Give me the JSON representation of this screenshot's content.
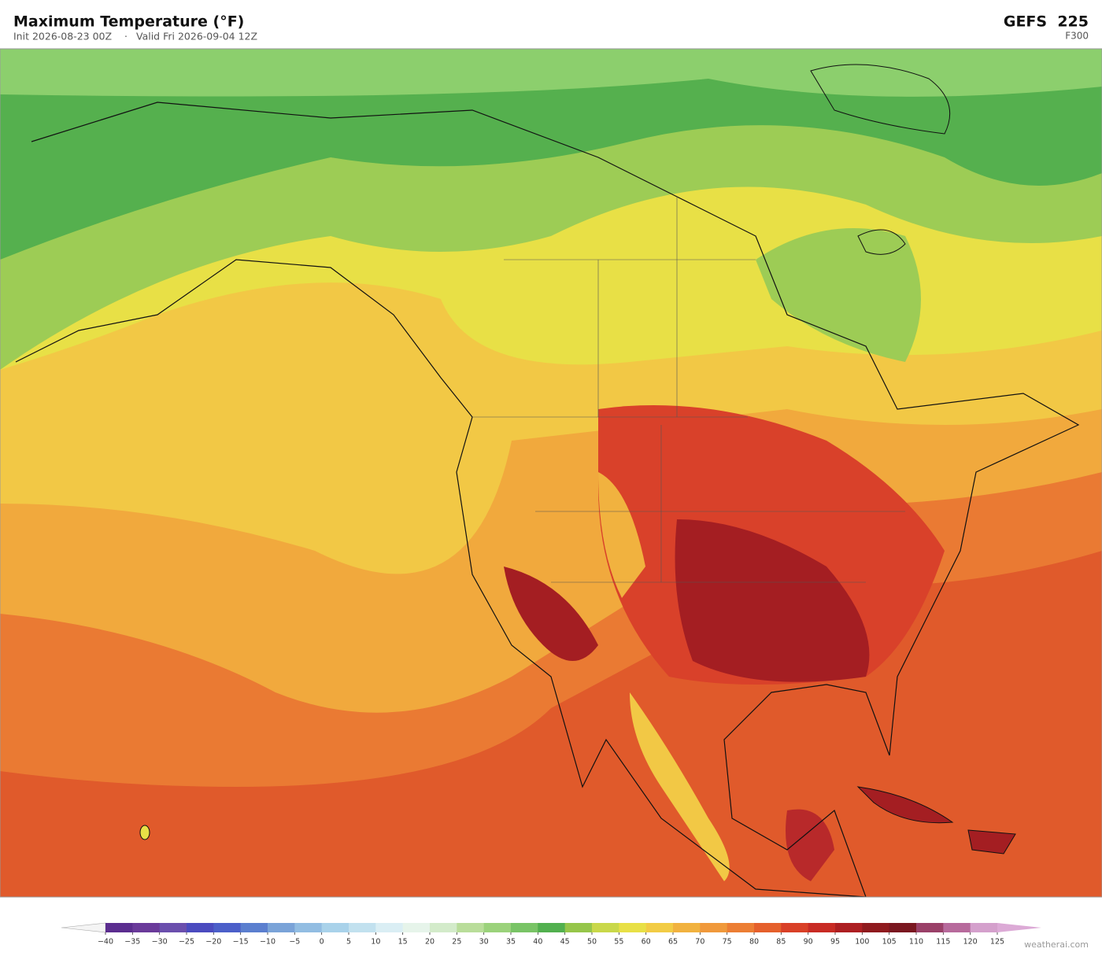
{
  "header": {
    "title": "Maximum Temperature  (°F)",
    "subtitle_init": "Init 2026-08-23 00Z",
    "separator": "·",
    "subtitle_valid": "Valid Fri 2026-09-04 12Z",
    "model": "GEFS  225",
    "forecast_hour": "F300"
  },
  "colorbar": {
    "ticks": [
      {
        "value": -40,
        "label": "−40"
      },
      {
        "value": -35,
        "label": "−35"
      },
      {
        "value": -30,
        "label": "−30"
      },
      {
        "value": -25,
        "label": "−25"
      },
      {
        "value": -20,
        "label": "−20"
      },
      {
        "value": -15,
        "label": "−15"
      },
      {
        "value": -10,
        "label": "−10"
      },
      {
        "value": -5,
        "label": "−5"
      },
      0,
      5,
      10,
      15,
      20,
      25,
      30,
      35,
      40,
      45,
      50,
      55,
      60,
      65,
      70,
      75,
      80,
      85,
      90,
      95,
      100,
      105,
      110,
      115,
      120,
      125
    ],
    "colors": [
      "#5b2d8f",
      "#6a3a9a",
      "#6b4fad",
      "#4b4bbf",
      "#4c5fc9",
      "#5b7fcf",
      "#7aa3d8",
      "#92bde2",
      "#a9d2ea",
      "#c2e1ef",
      "#daeef4",
      "#e6f4ea",
      "#d3ebca",
      "#b9dd9a",
      "#9bd27b",
      "#79c466",
      "#52b04f",
      "#96c64a",
      "#c9d84a",
      "#e8e046",
      "#f2cc45",
      "#f1b23f",
      "#f0993b",
      "#ec7e34",
      "#e5602c",
      "#d94027",
      "#c82b24",
      "#ad1f22",
      "#8f1a1e",
      "#7a1720",
      "#9a4068",
      "#b76a9c",
      "#d4a0cc"
    ],
    "under_color": "#f4f4f4",
    "over_color": "#dcaad6"
  },
  "watermark": "weatherai.com"
}
